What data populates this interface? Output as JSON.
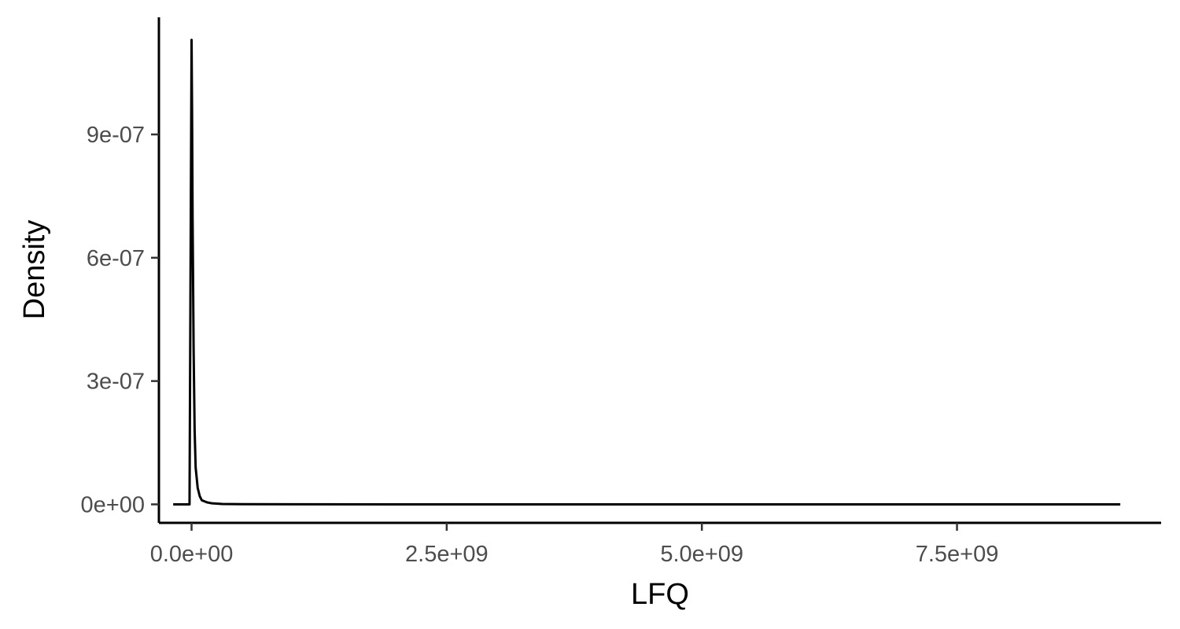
{
  "chart_data": {
    "type": "line",
    "xlabel": "LFQ",
    "ylabel": "Density",
    "xlim": [
      -320000000,
      9500000000
    ],
    "ylim": [
      -4.5e-08,
      1.185e-06
    ],
    "x_ticks": [
      0,
      2500000000,
      5000000000,
      7500000000
    ],
    "x_tick_labels": [
      "0.0e+00",
      "2.5e+09",
      "5.0e+09",
      "7.5e+09"
    ],
    "y_ticks": [
      0,
      3e-07,
      6e-07,
      9e-07
    ],
    "y_tick_labels": [
      "0e+00",
      "3e-07",
      "6e-07",
      "9e-07"
    ],
    "grid": false,
    "legend": "none",
    "series": [
      {
        "color": "#000000",
        "x": [
          -180000000,
          -20000000,
          0,
          5000000,
          10000000,
          20000000,
          30000000,
          40000000,
          60000000,
          80000000,
          100000000,
          150000000,
          200000000,
          300000000,
          500000000,
          1000000000,
          2000000000,
          4000000000,
          6000000000,
          8000000000,
          9100000000
        ],
        "y": [
          0,
          0,
          1.13e-06,
          9.5e-07,
          7e-07,
          3.8e-07,
          1.8e-07,
          9e-08,
          4e-08,
          2e-08,
          1e-08,
          5e-09,
          2.5e-09,
          1e-09,
          5e-10,
          2e-10,
          0,
          0,
          0,
          0,
          0
        ]
      }
    ]
  }
}
